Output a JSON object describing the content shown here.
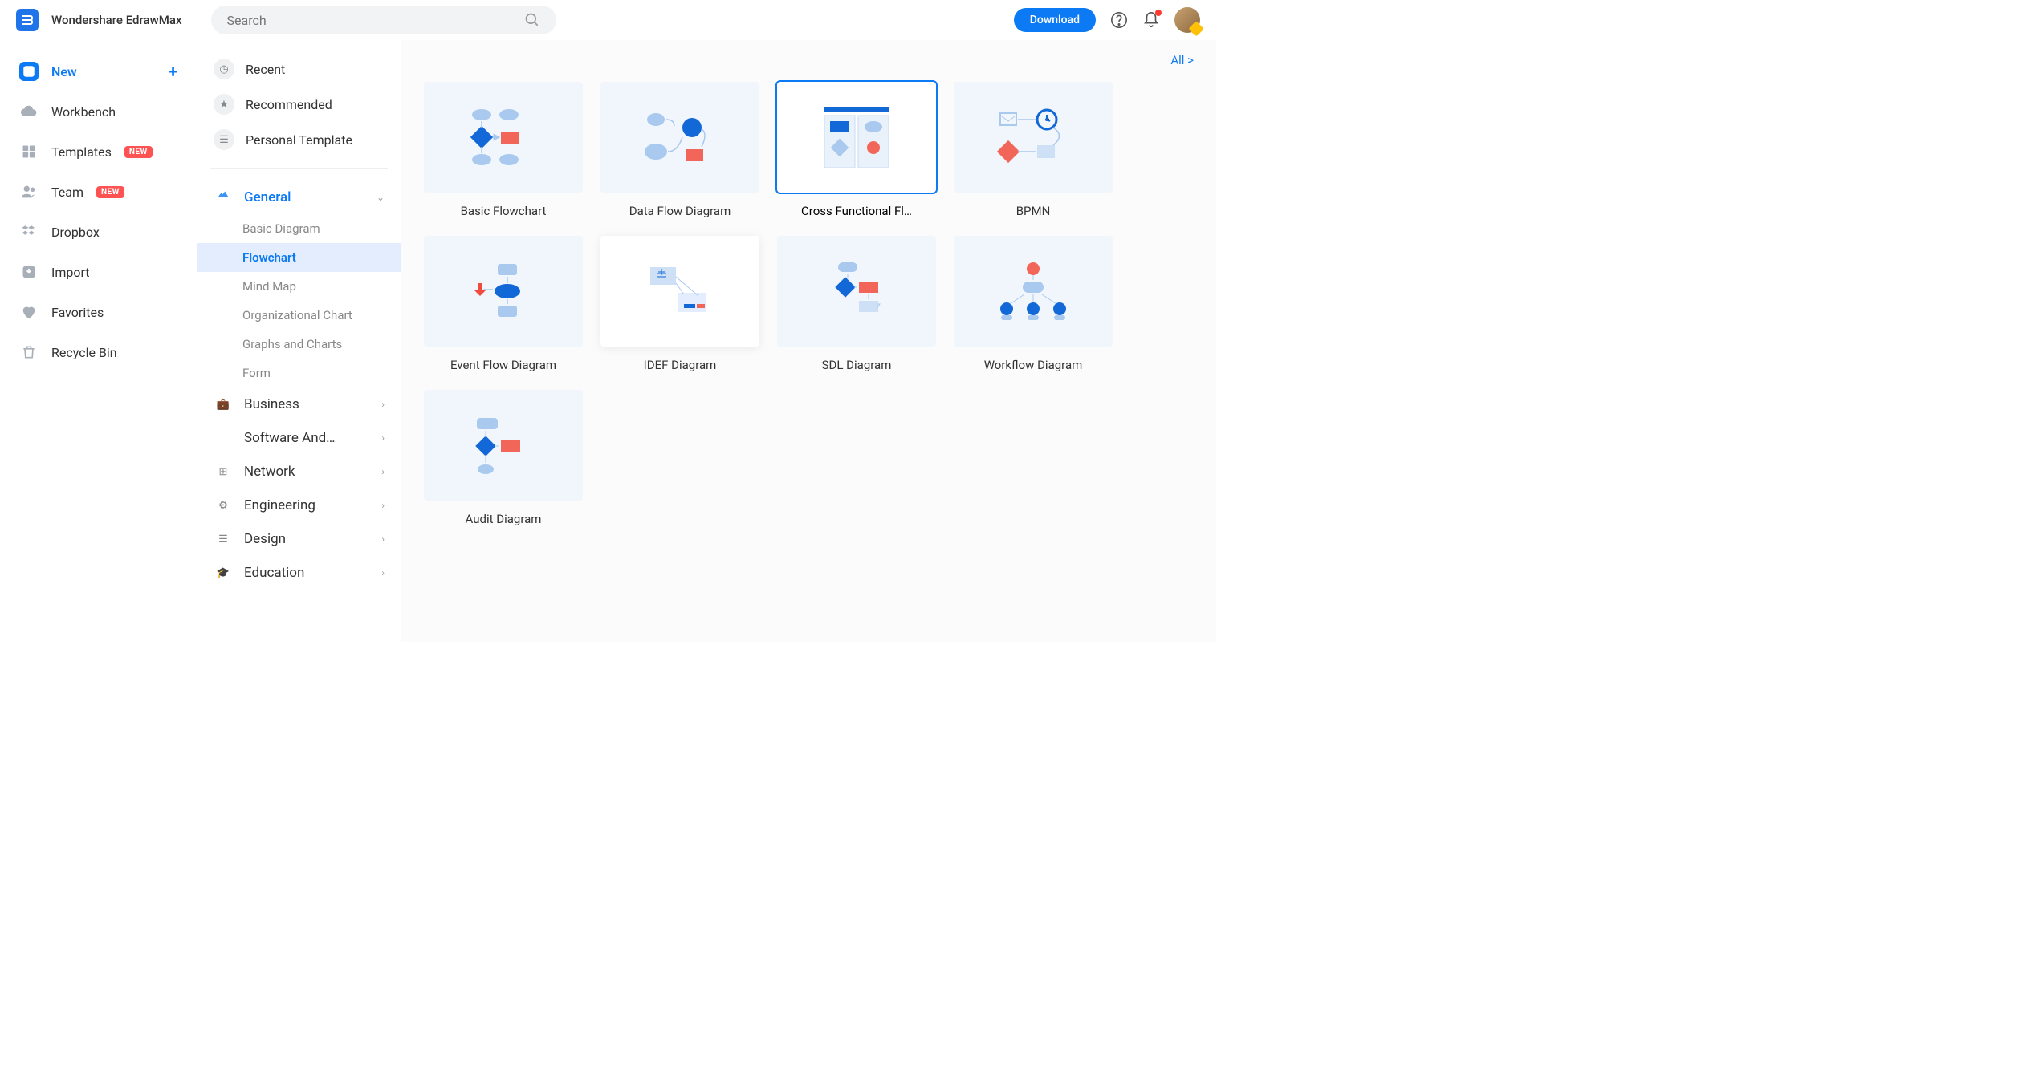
{
  "app": {
    "title": "Wondershare EdrawMax"
  },
  "topbar": {
    "search_placeholder": "Search",
    "download_label": "Download"
  },
  "sidebar": {
    "items": [
      {
        "label": "New",
        "icon": "plus-square",
        "active": true,
        "has_plus": true
      },
      {
        "label": "Workbench",
        "icon": "cloud"
      },
      {
        "label": "Templates",
        "icon": "grid",
        "badge": "NEW"
      },
      {
        "label": "Team",
        "icon": "people",
        "badge": "NEW"
      },
      {
        "label": "Dropbox",
        "icon": "dropbox"
      },
      {
        "label": "Import",
        "icon": "import"
      },
      {
        "label": "Favorites",
        "icon": "heart"
      },
      {
        "label": "Recycle Bin",
        "icon": "trash"
      }
    ]
  },
  "categories": {
    "top": [
      {
        "label": "Recent",
        "icon": "clock"
      },
      {
        "label": "Recommended",
        "icon": "star"
      },
      {
        "label": "Personal Template",
        "icon": "doc"
      }
    ],
    "groups": [
      {
        "label": "General",
        "expanded": true,
        "subs": [
          {
            "label": "Basic Diagram"
          },
          {
            "label": "Flowchart",
            "active": true
          },
          {
            "label": "Mind Map"
          },
          {
            "label": "Organizational Chart"
          },
          {
            "label": "Graphs and Charts"
          },
          {
            "label": "Form"
          }
        ]
      },
      {
        "label": "Business"
      },
      {
        "label": "Software And…"
      },
      {
        "label": "Network"
      },
      {
        "label": "Engineering"
      },
      {
        "label": "Design"
      },
      {
        "label": "Education"
      }
    ]
  },
  "content": {
    "all_label": "All  >",
    "templates": [
      {
        "label": "Basic Flowchart",
        "id": "basic"
      },
      {
        "label": "Data Flow Diagram",
        "id": "dataflow"
      },
      {
        "label": "Cross Functional Fl…",
        "id": "crossfn",
        "selected": true
      },
      {
        "label": "BPMN",
        "id": "bpmn"
      },
      {
        "label": "Event Flow Diagram",
        "id": "event"
      },
      {
        "label": "IDEF Diagram",
        "id": "idef",
        "hover": true
      },
      {
        "label": "SDL Diagram",
        "id": "sdl"
      },
      {
        "label": "Workflow Diagram",
        "id": "workflow"
      },
      {
        "label": "Audit Diagram",
        "id": "audit"
      }
    ]
  },
  "colors": {
    "accent": "#0d7af5",
    "light_blue": "#a9c9ef",
    "dark_blue": "#1368d8",
    "red": "#f2665a",
    "panel_bg": "#f1f6fc"
  }
}
